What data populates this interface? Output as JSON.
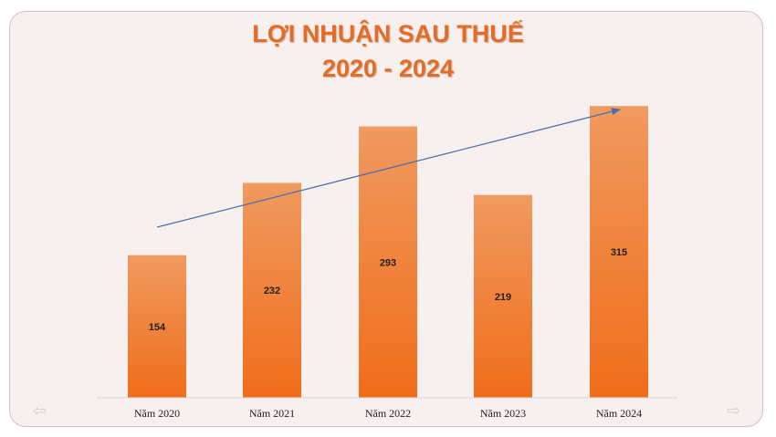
{
  "chart_data": {
    "type": "bar",
    "title": "LỢI NHUẬN SAU THUẾ",
    "subtitle": "2020 - 2024",
    "categories": [
      "Năm 2020",
      "Năm 2021",
      "Năm 2022",
      "Năm 2023",
      "Năm 2024"
    ],
    "values": [
      154,
      232,
      293,
      219,
      315
    ],
    "data_labels": [
      "154",
      "232",
      "293",
      "219",
      "315"
    ],
    "bar_color": "#f07a2c",
    "bar_gradient_top": "#f09a60",
    "bar_gradient_bottom": "#f06d1a",
    "trend_arrow_color": "#4a6fae",
    "title_color": "#e46c27",
    "grid": false,
    "legend": "none",
    "ylim": [
      0,
      330
    ]
  },
  "navigation": {
    "prev_icon": "left-arrow-icon",
    "next_icon": "right-arrow-icon"
  }
}
